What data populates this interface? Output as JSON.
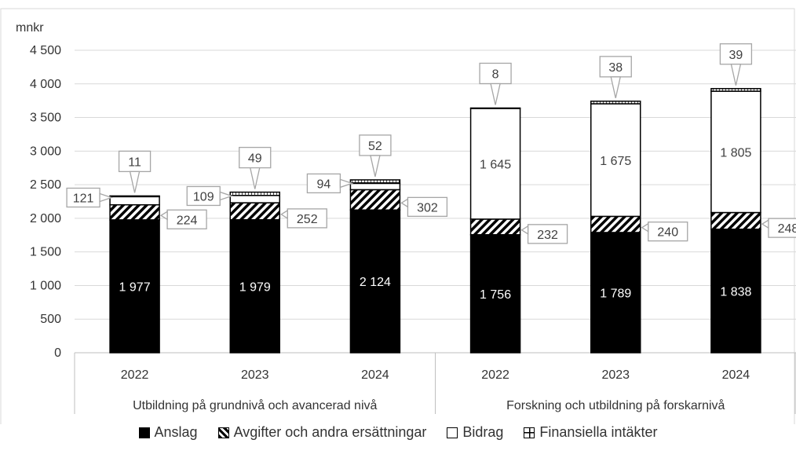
{
  "chart_data": {
    "type": "bar",
    "stacked": true,
    "ylabel": "mnkr",
    "ylim": [
      0,
      4500
    ],
    "ytick_step": 500,
    "ytick_labels": [
      "0",
      "500",
      "1 000",
      "1 500",
      "2 000",
      "2 500",
      "3 000",
      "3 500",
      "4 000",
      "4 500"
    ],
    "groups": [
      {
        "label": "Utbildning på grundnivå och avancerad nivå",
        "years": [
          "2022",
          "2023",
          "2024"
        ]
      },
      {
        "label": "Forskning och utbildning på forskarnivå",
        "years": [
          "2022",
          "2023",
          "2024"
        ]
      }
    ],
    "series": [
      {
        "name": "Anslag",
        "values": [
          1977,
          1979,
          2124,
          1756,
          1789,
          1838
        ],
        "labels": [
          "1 977",
          "1 979",
          "2 124",
          "1 756",
          "1 789",
          "1 838"
        ]
      },
      {
        "name": "Avgifter och andra ersättningar",
        "values": [
          224,
          252,
          302,
          232,
          240,
          248
        ],
        "labels": [
          "224",
          "252",
          "302",
          "232",
          "240",
          "248"
        ]
      },
      {
        "name": "Bidrag",
        "values": [
          121,
          109,
          94,
          1645,
          1675,
          1805
        ],
        "labels": [
          "121",
          "109",
          "94",
          "1 645",
          "1 675",
          "1 805"
        ]
      },
      {
        "name": "Finansiella intäkter",
        "values": [
          11,
          49,
          52,
          8,
          38,
          39
        ],
        "labels": [
          "11",
          "49",
          "52",
          "8",
          "38",
          "39"
        ]
      }
    ],
    "legend_position": "bottom",
    "grid": true
  },
  "legend": [
    {
      "label": "Anslag",
      "symbol": "solid"
    },
    {
      "label": "Avgifter och andra ersättningar",
      "symbol": "hatched"
    },
    {
      "label": "Bidrag",
      "symbol": "empty"
    },
    {
      "label": "Finansiella intäkter",
      "symbol": "grid"
    }
  ],
  "colors": {
    "bar": "#000000",
    "grid": "#d9d9d9",
    "text": "#333333",
    "callout_border": "#a6a6a6"
  }
}
